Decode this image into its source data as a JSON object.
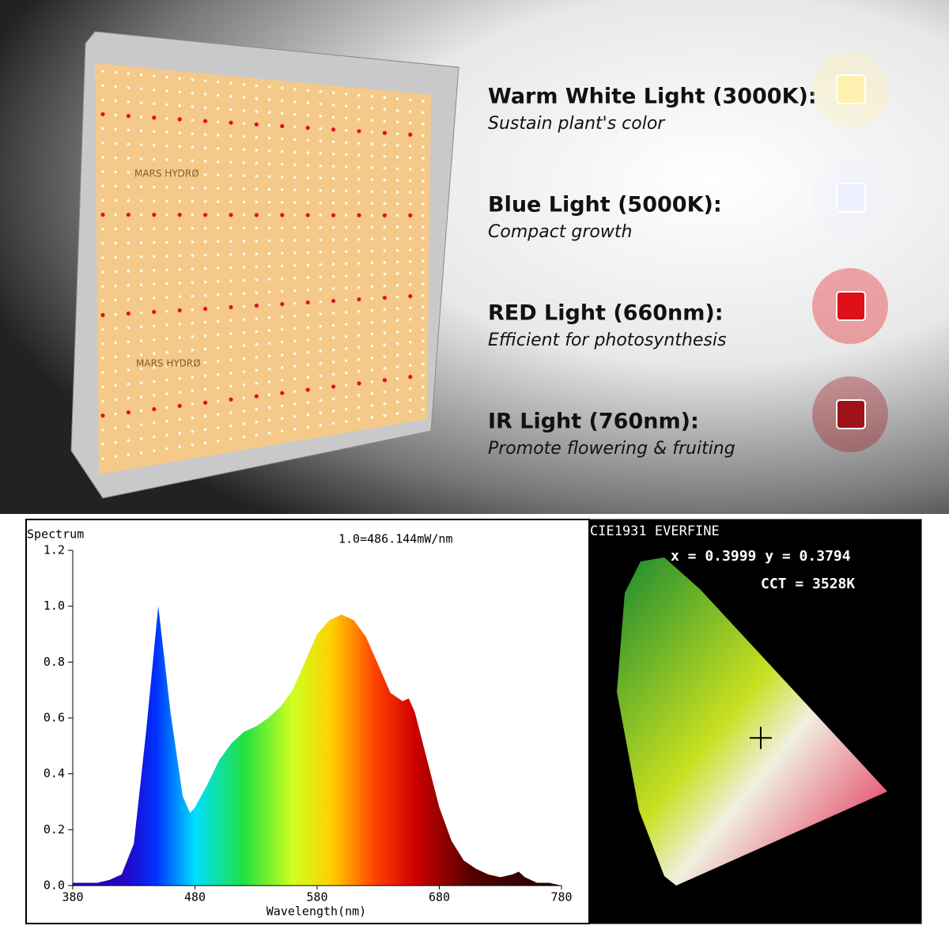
{
  "brand": [
    "MARS HYDRØ",
    "MARS HYDRØ"
  ],
  "light_types": [
    {
      "title": "Warm White Light (3000K):",
      "subtitle": "Sustain plant's color",
      "color": "#fff2b0"
    },
    {
      "title": "Blue Light (5000K):",
      "subtitle": "Compact growth",
      "color": "#eef0ff"
    },
    {
      "title": "RED Light (660nm):",
      "subtitle": "Efficient for photosynthesis",
      "color": "#e0101a"
    },
    {
      "title": "IR Light (760nm):",
      "subtitle": "Promote flowering & fruiting",
      "color": "#a0121a"
    }
  ],
  "chart_data": [
    {
      "type": "area",
      "y_label": "Spectrum",
      "annotation": "1.0=486.144mW/nm",
      "x_label": "Wavelength(nm)",
      "x": [
        380,
        390,
        400,
        410,
        420,
        430,
        440,
        450,
        460,
        470,
        476,
        480,
        490,
        500,
        510,
        520,
        530,
        540,
        550,
        560,
        570,
        580,
        590,
        600,
        610,
        620,
        630,
        640,
        650,
        655,
        660,
        670,
        680,
        690,
        700,
        710,
        720,
        730,
        740,
        745,
        750,
        760,
        770,
        780
      ],
      "values": [
        0.01,
        0.01,
        0.01,
        0.02,
        0.04,
        0.15,
        0.55,
        1.0,
        0.62,
        0.32,
        0.26,
        0.28,
        0.36,
        0.45,
        0.51,
        0.55,
        0.57,
        0.6,
        0.64,
        0.7,
        0.8,
        0.9,
        0.95,
        0.97,
        0.95,
        0.89,
        0.79,
        0.69,
        0.66,
        0.67,
        0.62,
        0.45,
        0.28,
        0.16,
        0.09,
        0.06,
        0.04,
        0.03,
        0.04,
        0.05,
        0.03,
        0.01,
        0.01,
        0.0
      ],
      "xlim": [
        380,
        780
      ],
      "xticks": [
        380,
        480,
        580,
        680,
        780
      ],
      "ylim": [
        0,
        1.2
      ],
      "yticks": [
        {
          "value": 0,
          "label": "0.0"
        },
        0.2,
        0.4,
        0.6,
        0.8,
        {
          "value": 1,
          "label": "1.0"
        },
        1.2
      ]
    },
    {
      "type": "cie",
      "title": "CIE1931 EVERFINE",
      "annotations": [
        "x = 0.3999  y = 0.3794",
        "CCT = 3528K"
      ],
      "point": {
        "x": 0.3999,
        "y": 0.3794
      },
      "xlim": [
        0,
        0.8
      ],
      "ylim": [
        0,
        0.9
      ]
    }
  ]
}
